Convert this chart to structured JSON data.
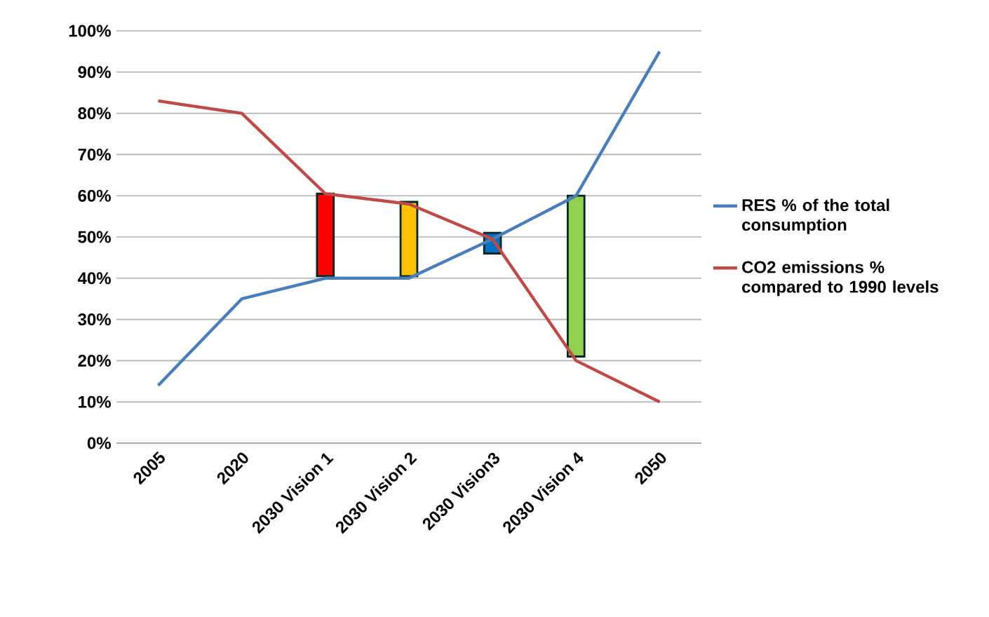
{
  "chart_data": {
    "type": "line",
    "categories": [
      "2005",
      "2020",
      "2030 Vision 1",
      "2030 Vision 2",
      "2030 Vision3",
      "2030 Vision 4",
      "2050"
    ],
    "series": [
      {
        "name": "RES % of the total consumption",
        "color": "#4a7ebb",
        "values": [
          14,
          35,
          40,
          40,
          49.5,
          60,
          95
        ]
      },
      {
        "name": "CO2 emissions % compared to 1990 levels",
        "color": "#be4b48",
        "values": [
          83,
          80,
          60.5,
          58,
          49.5,
          20,
          10
        ]
      },
      {
        "type": "bar",
        "colors": [
          "#ff0000",
          "#ff0000",
          "#ff0000",
          "#ffc000",
          "#0070c0",
          "#92d050",
          "#92d050"
        ],
        "base": [
          null,
          null,
          40.5,
          40.5,
          46,
          21,
          null
        ],
        "values": [
          null,
          null,
          20,
          18,
          5,
          39,
          null
        ]
      }
    ],
    "ylim": [
      0,
      100
    ],
    "yticks": [
      {
        "value": 0,
        "label": "0%"
      },
      {
        "value": 10,
        "label": "10%"
      },
      {
        "value": 20,
        "label": "20%"
      },
      {
        "value": 30,
        "label": "30%"
      },
      {
        "value": 40,
        "label": "40%"
      },
      {
        "value": 50,
        "label": "50%"
      },
      {
        "value": 60,
        "label": "60%"
      },
      {
        "value": 70,
        "label": "70%"
      },
      {
        "value": 80,
        "label": "80%"
      },
      {
        "value": 90,
        "label": "90%"
      },
      {
        "value": 100,
        "label": "100%"
      }
    ],
    "grid": "y",
    "legend": "right",
    "marker": "none",
    "line_style": "solid"
  }
}
